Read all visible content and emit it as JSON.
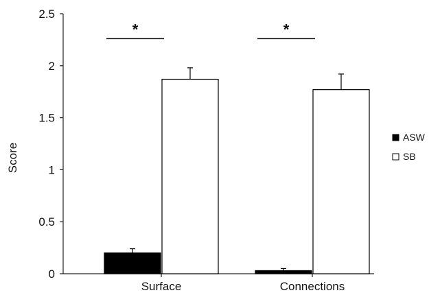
{
  "chart_data": {
    "type": "bar",
    "title": "",
    "xlabel": "",
    "ylabel": "Score",
    "ylim": [
      0,
      2.5
    ],
    "yticks": [
      "0",
      "0.5",
      "1",
      "1.5",
      "2",
      "2.5"
    ],
    "categories": [
      "Surface",
      "Connections"
    ],
    "series": [
      {
        "name": "ASW",
        "values": [
          0.2,
          0.03
        ],
        "errors": [
          0.04,
          0.02
        ],
        "color": "#000000"
      },
      {
        "name": "SB",
        "values": [
          1.87,
          1.77
        ],
        "errors": [
          0.11,
          0.15
        ],
        "color": "#ffffff"
      }
    ],
    "significance": [
      {
        "category": 0,
        "label": "*",
        "line_y": 2.26
      },
      {
        "category": 1,
        "label": "*",
        "line_y": 2.26
      }
    ],
    "legend_position": "right",
    "grid": false
  }
}
